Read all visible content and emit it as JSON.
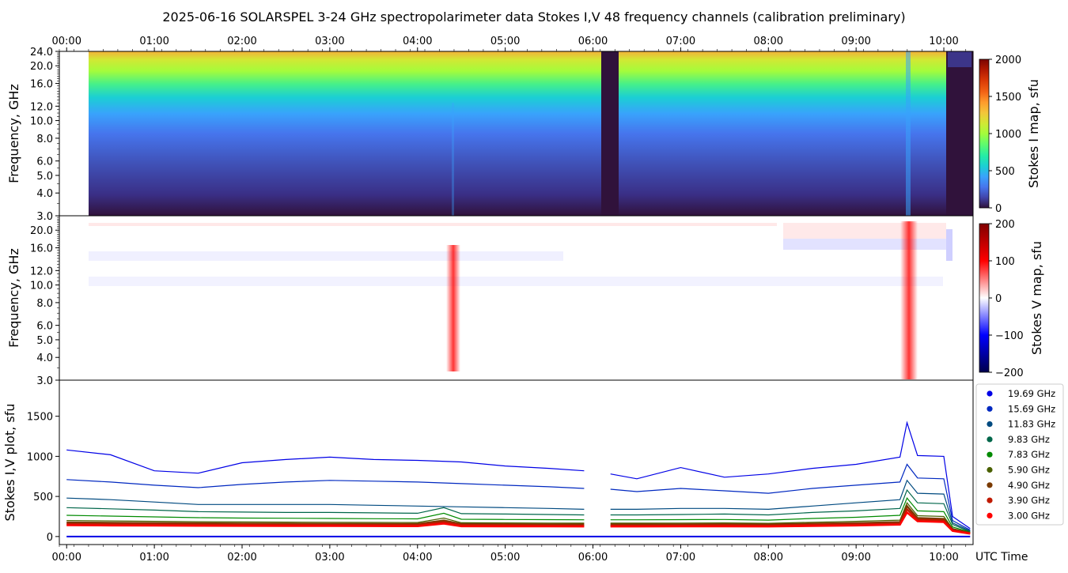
{
  "title": "2025-06-16  SOLARSPEL  3-24 GHz spectropolarimeter data   Stokes I,V   48 frequency channels   (calibration preliminary)",
  "colors": {
    "turbo": [
      "#30123b",
      "#4145ab",
      "#4675ed",
      "#39a2fc",
      "#1bcfd4",
      "#24eca6",
      "#61fc6c",
      "#a4fc3b",
      "#d1e834",
      "#f3c63a",
      "#fe9b2d",
      "#f36315",
      "#d93806",
      "#b11901",
      "#7a0402"
    ],
    "seismic": [
      "#00004c",
      "#0000ff",
      "#ffffff",
      "#ff0000",
      "#800000"
    ],
    "series": [
      "#0000e6",
      "#0028c0",
      "#004a80",
      "#00664a",
      "#008a00",
      "#4a6000",
      "#7a3a00",
      "#c01a00",
      "#ff0000"
    ]
  },
  "chart_data": [
    {
      "type": "heatmap",
      "name": "Stokes I map",
      "ylabel": "Frequency, GHz",
      "yticks": [
        "24.0",
        "20.0",
        "16.0",
        "12.0",
        "10.0",
        "8.0",
        "6.0",
        "5.0",
        "4.0",
        "3.0"
      ],
      "yscale": "log",
      "ylim": [
        3.0,
        24.0
      ],
      "xlim": [
        "23:55",
        "10:20"
      ],
      "colorbar_label": "Stokes I map, sfu",
      "colorbar_ticks": [
        "2000",
        "1500",
        "1000",
        "500",
        "0"
      ],
      "clim": [
        0,
        2000
      ],
      "colormap": "turbo",
      "notes": [
        "data gap 06:00-06:12",
        "burst at 09:35"
      ]
    },
    {
      "type": "heatmap",
      "name": "Stokes V map",
      "ylabel": "Frequency, GHz",
      "yticks": [
        "20.0",
        "16.0",
        "12.0",
        "10.0",
        "8.0",
        "6.0",
        "5.0",
        "4.0",
        "3.0"
      ],
      "yscale": "log",
      "ylim": [
        3.0,
        24.0
      ],
      "colorbar_label": "Stokes V map, sfu",
      "colorbar_ticks": [
        "200",
        "100",
        "0",
        "−100",
        "−200"
      ],
      "clim": [
        -200,
        200
      ],
      "colormap": "seismic"
    },
    {
      "type": "line",
      "name": "Stokes I,V plot",
      "ylabel": "Stokes I,V plot, sfu",
      "yticks": [
        "1500",
        "1000",
        "500",
        "0"
      ],
      "ylim": [
        -100,
        1950
      ],
      "xlabel": "UTC Time",
      "xticks": [
        "00:00",
        "01:00",
        "02:00",
        "03:00",
        "04:00",
        "05:00",
        "06:00",
        "07:00",
        "08:00",
        "09:00",
        "10:00"
      ],
      "legend_position": "right",
      "series": [
        {
          "name": "19.69 GHz",
          "t": [
            0,
            0.5,
            1,
            1.5,
            2,
            2.5,
            3,
            3.5,
            4,
            4.5,
            5,
            5.5,
            5.9,
            6.2,
            6.5,
            7,
            7.5,
            8,
            8.5,
            9,
            9.5,
            9.58,
            9.7,
            10,
            10.1,
            10.3
          ],
          "values": [
            1080,
            1020,
            820,
            790,
            920,
            960,
            990,
            960,
            950,
            930,
            880,
            850,
            820,
            780,
            720,
            860,
            740,
            780,
            850,
            900,
            990,
            1420,
            1010,
            1000,
            250,
            100
          ]
        },
        {
          "name": "15.69 GHz",
          "t": [
            0,
            0.5,
            1,
            1.5,
            2,
            2.5,
            3,
            3.5,
            4,
            4.5,
            5,
            5.5,
            5.9,
            6.2,
            6.5,
            7,
            7.5,
            8,
            8.5,
            9,
            9.5,
            9.58,
            9.7,
            10,
            10.1,
            10.3
          ],
          "values": [
            710,
            680,
            640,
            610,
            650,
            680,
            700,
            690,
            680,
            660,
            640,
            620,
            600,
            590,
            560,
            600,
            570,
            540,
            600,
            640,
            680,
            900,
            730,
            720,
            200,
            80
          ]
        },
        {
          "name": "11.83 GHz",
          "t": [
            0,
            0.5,
            1,
            1.5,
            2,
            2.5,
            3,
            3.5,
            4,
            4.5,
            5,
            5.5,
            5.9,
            6.2,
            6.5,
            7,
            7.5,
            8,
            8.5,
            9,
            9.5,
            9.58,
            9.7,
            10,
            10.1,
            10.3
          ],
          "values": [
            480,
            460,
            430,
            400,
            400,
            400,
            400,
            390,
            380,
            370,
            360,
            350,
            340,
            340,
            340,
            350,
            350,
            340,
            380,
            420,
            460,
            700,
            540,
            530,
            170,
            70
          ]
        },
        {
          "name": "9.83 GHz",
          "t": [
            0,
            0.5,
            1,
            1.5,
            2,
            2.5,
            3,
            3.5,
            4,
            4.3,
            4.5,
            5,
            5.5,
            5.9,
            6.2,
            6.5,
            7,
            7.5,
            8,
            8.5,
            9,
            9.5,
            9.58,
            9.7,
            10,
            10.1,
            10.3
          ],
          "values": [
            360,
            345,
            330,
            310,
            305,
            300,
            300,
            295,
            290,
            360,
            285,
            280,
            275,
            270,
            270,
            270,
            275,
            280,
            270,
            300,
            320,
            350,
            580,
            420,
            410,
            150,
            60
          ]
        },
        {
          "name": "7.83 GHz",
          "t": [
            0,
            0.5,
            1,
            1.5,
            2,
            2.5,
            3,
            3.5,
            4,
            4.3,
            4.5,
            5,
            5.5,
            5.9,
            6.2,
            6.5,
            7,
            7.5,
            8,
            8.5,
            9,
            9.5,
            9.58,
            9.7,
            10,
            10.1,
            10.3
          ],
          "values": [
            265,
            255,
            245,
            235,
            230,
            228,
            225,
            222,
            220,
            290,
            215,
            212,
            210,
            208,
            208,
            208,
            210,
            212,
            205,
            225,
            240,
            265,
            480,
            320,
            310,
            120,
            55
          ]
        },
        {
          "name": "5.90 GHz",
          "t": [
            0,
            0.5,
            1,
            1.5,
            2,
            2.5,
            3,
            3.5,
            4,
            4.3,
            4.5,
            5,
            5.5,
            5.9,
            6.2,
            6.5,
            7,
            7.5,
            8,
            8.5,
            9,
            9.5,
            9.58,
            9.7,
            10,
            10.1,
            10.3
          ],
          "values": [
            200,
            195,
            190,
            185,
            182,
            180,
            178,
            176,
            175,
            230,
            172,
            170,
            168,
            167,
            167,
            167,
            168,
            170,
            165,
            178,
            190,
            205,
            420,
            260,
            250,
            100,
            50
          ]
        },
        {
          "name": "4.90 GHz",
          "t": [
            0,
            0.5,
            1,
            1.5,
            2,
            2.5,
            3,
            3.5,
            4,
            4.3,
            4.5,
            5,
            5.5,
            5.9,
            6.2,
            6.5,
            7,
            7.5,
            8,
            8.5,
            9,
            9.5,
            9.58,
            9.7,
            10,
            10.1,
            10.3
          ],
          "values": [
            175,
            172,
            168,
            165,
            162,
            160,
            158,
            157,
            156,
            200,
            155,
            153,
            152,
            151,
            151,
            151,
            152,
            153,
            150,
            160,
            168,
            180,
            380,
            230,
            220,
            90,
            45
          ]
        },
        {
          "name": "3.90 GHz",
          "t": [
            0,
            0.5,
            1,
            1.5,
            2,
            2.5,
            3,
            3.5,
            4,
            4.3,
            4.5,
            5,
            5.5,
            5.9,
            6.2,
            6.5,
            7,
            7.5,
            8,
            8.5,
            9,
            9.5,
            9.58,
            9.7,
            10,
            10.1,
            10.3
          ],
          "values": [
            155,
            152,
            150,
            148,
            146,
            145,
            144,
            143,
            142,
            180,
            141,
            140,
            139,
            138,
            138,
            138,
            139,
            140,
            138,
            146,
            152,
            162,
            340,
            210,
            200,
            80,
            40
          ]
        },
        {
          "name": "3.00 GHz",
          "t": [
            0,
            0.5,
            1,
            1.5,
            2,
            2.5,
            3,
            3.5,
            4,
            4.3,
            4.5,
            5,
            5.5,
            5.9,
            6.2,
            6.5,
            7,
            7.5,
            8,
            8.5,
            9,
            9.5,
            9.58,
            9.7,
            10,
            10.1,
            10.3
          ],
          "values": [
            140,
            138,
            136,
            134,
            133,
            132,
            131,
            130,
            129,
            160,
            128,
            127,
            126,
            125,
            125,
            125,
            126,
            127,
            125,
            132,
            138,
            148,
            300,
            190,
            180,
            70,
            35
          ]
        }
      ]
    }
  ]
}
